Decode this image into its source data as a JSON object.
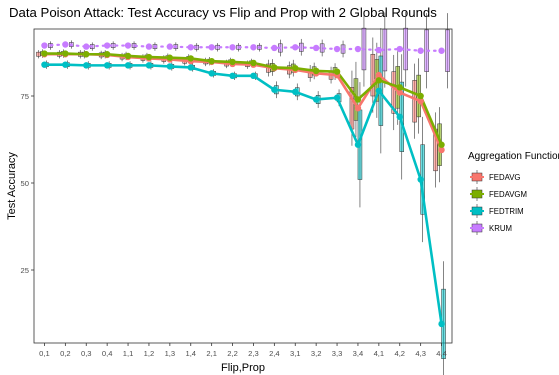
{
  "chart_data": {
    "type": "line",
    "title": "Data Poison Attack: Test Accuracy vs Flip and Prop with 2 Global Rounds",
    "xlabel": "Flip,Prop",
    "ylabel": "Test Accuracy",
    "categories": [
      "0,1",
      "0,2",
      "0,3",
      "0,4",
      "1,1",
      "1,2",
      "1,3",
      "1,4",
      "2,1",
      "2,2",
      "2,3",
      "2,4",
      "3,1",
      "3,2",
      "3,3",
      "3,4",
      "4,1",
      "4,2",
      "4,3",
      "4,4"
    ],
    "ylim": [
      0,
      92
    ],
    "yticks": [
      25,
      50,
      75
    ],
    "grid": false,
    "legend": {
      "title": "Aggregation Function",
      "position": "right"
    },
    "series": [
      {
        "name": "FEDAVG",
        "color": "#F8766D",
        "style": "solid",
        "values": [
          87.0,
          87.0,
          87.0,
          86.8,
          86.2,
          85.8,
          85.5,
          85.0,
          84.8,
          84.2,
          84.0,
          83.0,
          82.5,
          81.5,
          81.0,
          71.5,
          81.0,
          76.0,
          73.5,
          59.5
        ]
      },
      {
        "name": "FEDAVGM",
        "color": "#7CAE00",
        "style": "solid",
        "values": [
          87.2,
          87.2,
          87.0,
          87.0,
          86.5,
          86.2,
          86.0,
          85.8,
          85.0,
          84.8,
          84.5,
          83.2,
          83.0,
          82.2,
          82.0,
          74.0,
          79.5,
          77.5,
          75.0,
          61.0
        ]
      },
      {
        "name": "FEDTRIM",
        "color": "#00BFC4",
        "style": "solid",
        "values": [
          84.0,
          84.0,
          83.8,
          83.8,
          83.8,
          83.8,
          83.5,
          83.2,
          81.5,
          80.8,
          80.8,
          76.8,
          76.2,
          74.0,
          74.5,
          61.0,
          76.5,
          69.0,
          51.0,
          9.5
        ]
      },
      {
        "name": "KRUM",
        "color": "#C77CFF",
        "style": "dotted",
        "values": [
          89.5,
          89.8,
          89.2,
          89.5,
          89.5,
          89.2,
          89.2,
          89.0,
          89.0,
          89.0,
          89.0,
          88.8,
          89.0,
          88.8,
          88.5,
          88.5,
          88.2,
          88.5,
          88.0,
          88.0
        ]
      }
    ]
  }
}
